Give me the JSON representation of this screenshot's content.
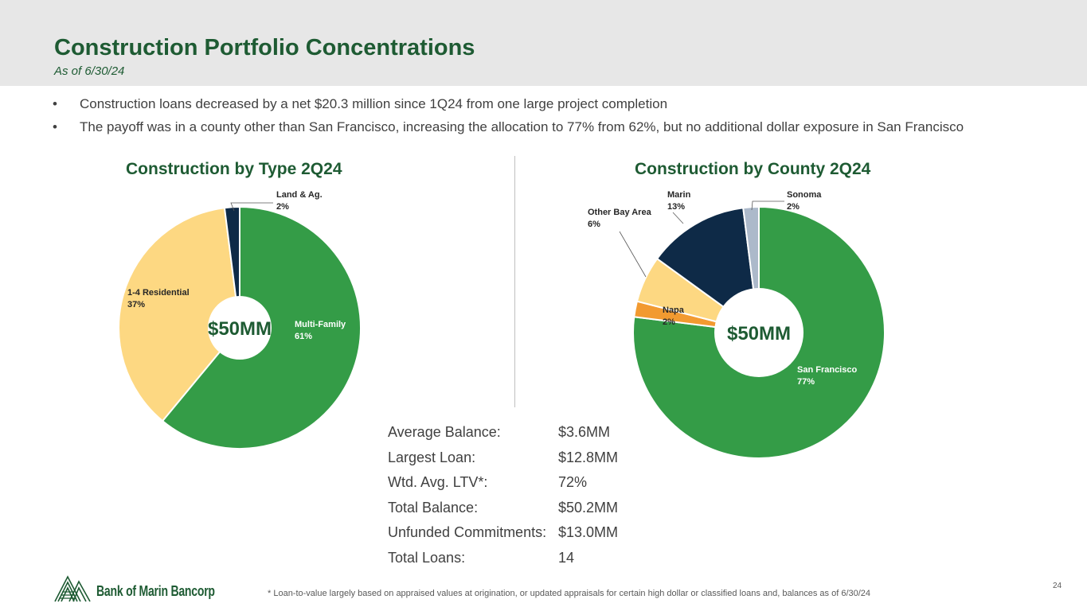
{
  "header": {
    "title": "Construction Portfolio Concentrations",
    "subtitle": "As of 6/30/24"
  },
  "bullets": [
    "Construction loans decreased by a net $20.3 million since 1Q24 from one large project completion",
    "The payoff was in a county other than San Francisco, increasing the allocation to 77% from 62%, but no additional dollar exposure in San Francisco"
  ],
  "bullet_symbol": "•",
  "colors": {
    "brand_green": "#1e5b33",
    "slice_green": "#349c47",
    "slice_yellow": "#fdd882",
    "slice_navy": "#0e2a47",
    "slice_orange": "#f29a30",
    "slice_gray": "#acb9ca"
  },
  "chart_data": [
    {
      "type": "pie",
      "title": "Construction by Type 2Q24",
      "center_label": "$50MM",
      "slices": [
        {
          "name": "Multi-Family",
          "value": 61,
          "label": "61%",
          "color": "#349c47"
        },
        {
          "name": "1-4 Residential",
          "value": 37,
          "label": "37%",
          "color": "#fdd882"
        },
        {
          "name": "Land & Ag.",
          "value": 2,
          "label": "2%",
          "color": "#0e2a47"
        }
      ]
    },
    {
      "type": "pie",
      "title": "Construction by County 2Q24",
      "center_label": "$50MM",
      "slices": [
        {
          "name": "San Francisco",
          "value": 77,
          "label": "77%",
          "color": "#349c47"
        },
        {
          "name": "Napa",
          "value": 2,
          "label": "2%",
          "color": "#f29a30"
        },
        {
          "name": "Other Bay Area",
          "value": 6,
          "label": "6%",
          "color": "#fdd882"
        },
        {
          "name": "Marin",
          "value": 13,
          "label": "13%",
          "color": "#0e2a47"
        },
        {
          "name": "Sonoma",
          "value": 2,
          "label": "2%",
          "color": "#acb9ca"
        }
      ]
    }
  ],
  "stats": [
    {
      "label": "Average Balance:",
      "value": "$3.6MM"
    },
    {
      "label": "Largest Loan:",
      "value": "$12.8MM"
    },
    {
      "label": "Wtd. Avg. LTV*:",
      "value": "72%"
    },
    {
      "label": "Total Balance:",
      "value": "$50.2MM"
    },
    {
      "label": "Unfunded Commitments:",
      "value": "$13.0MM"
    },
    {
      "label": "Total Loans:",
      "value": "14"
    }
  ],
  "footnote": "*  Loan-to-value largely based on appraised values at origination, or updated appraisals for certain high dollar or classified loans and, balances as of 6/30/24",
  "page_number": "24",
  "logo": {
    "text": "Bank of Marin Bancorp"
  }
}
